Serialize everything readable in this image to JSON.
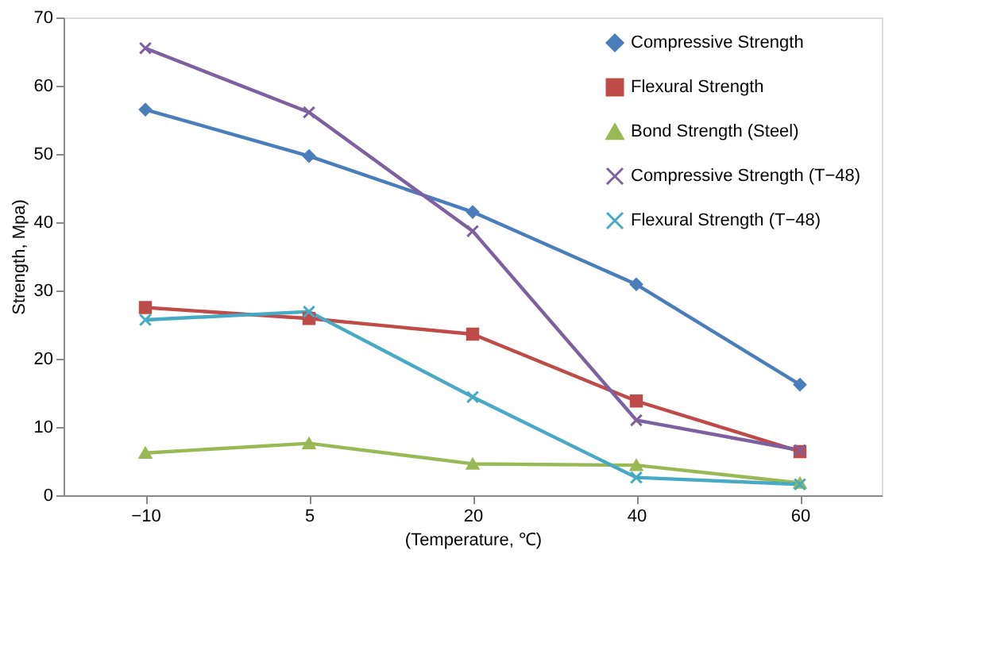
{
  "chart_data": {
    "type": "line",
    "xlabel": "(Temperature, ℃)",
    "ylabel": "Strength, Mpa)",
    "categories": [
      "−10",
      "5",
      "20",
      "40",
      "60"
    ],
    "ylim": [
      0,
      70
    ],
    "yticks": [
      0,
      10,
      20,
      30,
      40,
      50,
      60,
      70
    ],
    "grid": false,
    "legend": "top right",
    "line_style": "solid",
    "series": [
      {
        "name": "Compressive Strength",
        "color": "#4a7ebb",
        "marker": "diamond",
        "values": [
          56.5,
          49.7,
          41.5,
          30.9,
          16.2
        ]
      },
      {
        "name": "Flexural Strength",
        "color": "#be4b48",
        "marker": "square",
        "values": [
          27.5,
          25.9,
          23.6,
          13.8,
          6.4
        ]
      },
      {
        "name": "Bond Strength (Steel)",
        "color": "#98b954",
        "marker": "triangle",
        "values": [
          6.2,
          7.6,
          4.6,
          4.4,
          1.8
        ]
      },
      {
        "name": "Compressive Strength  (T−48)",
        "color": "#7d60a0",
        "marker": "cross",
        "values": [
          65.5,
          56.1,
          38.7,
          11.0,
          6.6
        ]
      },
      {
        "name": "Flexural Strength   (T−48)",
        "color": "#46aac5",
        "marker": "cross",
        "values": [
          25.7,
          26.9,
          14.4,
          2.6,
          1.6
        ]
      }
    ]
  }
}
